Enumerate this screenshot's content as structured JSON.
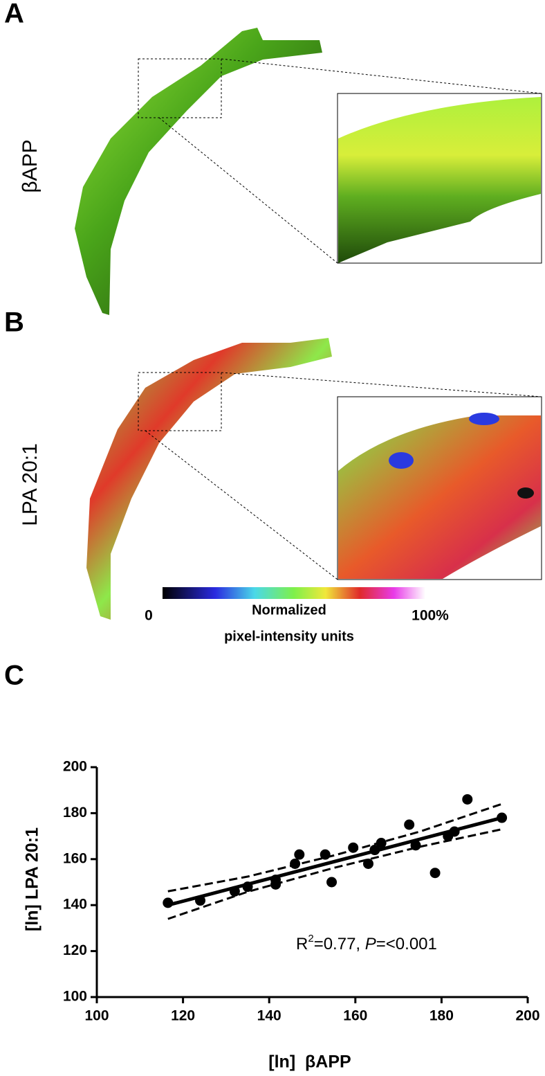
{
  "panels": [
    {
      "label": "A",
      "image_label": "βAPP"
    },
    {
      "label": "B",
      "image_label": "LPA 20:1"
    }
  ],
  "colorbar": {
    "min_label": "0",
    "max_label": "100%",
    "caption": [
      "Normalized",
      "pixel-intensity units"
    ]
  },
  "panel_c_label": "C",
  "chart_data": {
    "type": "scatter",
    "x_label": "[ln]  βAPP",
    "y_label": "[ln] LPA 20:1",
    "annotation": {
      "r2_base": "R",
      "r2_sup": "2",
      "r2_rest": "=0.77, ",
      "p_italic": "P",
      "p_rest": "=<0.001"
    },
    "xlim": [
      100,
      200
    ],
    "xticks": [
      100,
      120,
      140,
      160,
      180,
      200
    ],
    "ylim": [
      100,
      200
    ],
    "yticks": [
      100,
      120,
      140,
      160,
      180,
      200
    ],
    "color": "#000000",
    "points": {
      "x": [
        116.5,
        124,
        132,
        135,
        141.5,
        141.5,
        146,
        147,
        153,
        154.5,
        159.5,
        163,
        164.5,
        166,
        172.5,
        174,
        178.5,
        181.5,
        183,
        186,
        194
      ],
      "y": [
        141,
        142,
        146,
        148,
        151,
        149,
        158,
        162,
        162,
        150,
        165,
        158,
        164,
        167,
        175,
        166,
        154,
        170,
        172,
        186,
        178
      ]
    },
    "fit": {
      "x": [
        116.5,
        194
      ],
      "y": [
        140,
        178
      ]
    },
    "ci_upper": {
      "x": [
        116.5,
        135,
        155,
        175,
        194
      ],
      "y": [
        146,
        152.4,
        161.6,
        172,
        184
      ]
    },
    "ci_lower": {
      "x": [
        116.5,
        135,
        155,
        175,
        194
      ],
      "y": [
        134,
        145.8,
        156.2,
        165.4,
        173
      ]
    }
  }
}
